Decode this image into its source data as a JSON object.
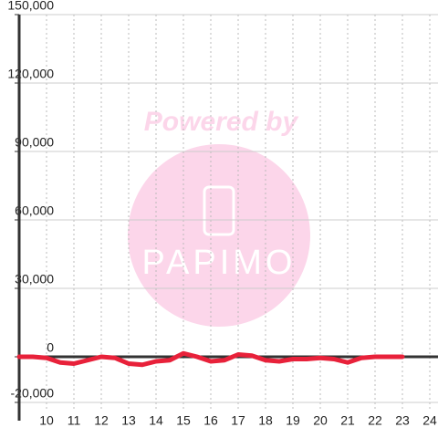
{
  "chart_data": {
    "type": "line",
    "watermark": {
      "text": "Powered by",
      "logo": "PAPIMO"
    },
    "x": [
      9,
      9.5,
      10,
      10.5,
      11,
      11.5,
      12,
      12.5,
      13,
      13.5,
      14,
      14.5,
      15,
      15.5,
      16,
      16.5,
      17,
      17.5,
      18,
      18.5,
      19,
      19.5,
      20,
      20.5,
      21,
      21.5,
      22,
      22.5,
      23
    ],
    "series": [
      {
        "color": "#e8213a",
        "values": [
          0,
          0,
          -500,
          -2500,
          -3000,
          -1500,
          0,
          -500,
          -3000,
          -3500,
          -2000,
          -1500,
          1500,
          0,
          -2000,
          -1500,
          1000,
          500,
          -1500,
          -2000,
          -1000,
          -1000,
          -500,
          -1000,
          -2500,
          -500,
          0,
          0,
          0
        ]
      }
    ],
    "xlim": [
      9,
      24.3
    ],
    "xticks": [
      10,
      11,
      12,
      13,
      14,
      15,
      16,
      17,
      18,
      19,
      20,
      21,
      22,
      23,
      24
    ],
    "ylim": [
      -20000,
      150000
    ],
    "yticks": [
      {
        "value": -20000,
        "label": "-20,000"
      },
      0,
      {
        "value": 30000,
        "label": "30,000"
      },
      {
        "value": 60000,
        "label": "60,000"
      },
      {
        "value": 90000,
        "label": "90,000"
      },
      {
        "value": 120000,
        "label": "120,000"
      },
      {
        "value": 150000,
        "label": "150,000"
      }
    ],
    "grid": true
  }
}
